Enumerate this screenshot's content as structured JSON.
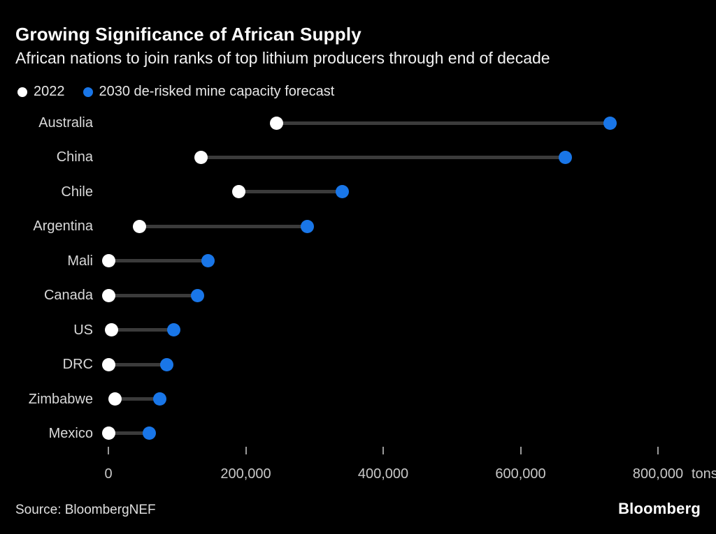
{
  "header": {
    "title": "Growing Significance of African Supply",
    "subtitle": "African nations to join ranks of top lithium producers through end of decade"
  },
  "legend": {
    "items": [
      {
        "label": "2022",
        "color": "#ffffff"
      },
      {
        "label": "2030 de-risked mine capacity forecast",
        "color": "#1976e8"
      }
    ]
  },
  "footer": {
    "source": "Source: BloombergNEF",
    "logo": "Bloomberg"
  },
  "colors": {
    "background": "#000000",
    "dot_2022": "#ffffff",
    "dot_2030": "#1976e8",
    "connector": "#3b3b3b",
    "axis_text": "#c8c8c8",
    "category_text": "#d9d9d9"
  },
  "chart_data": {
    "type": "dumbbell",
    "title": "Growing Significance of African Supply",
    "subtitle": "African nations to join ranks of top lithium producers through end of decade",
    "unit": "tons",
    "categories": [
      "Australia",
      "China",
      "Chile",
      "Argentina",
      "Mali",
      "Canada",
      "US",
      "DRC",
      "Zimbabwe",
      "Mexico"
    ],
    "series": [
      {
        "name": "2022",
        "color": "#ffffff",
        "values": [
          245000,
          135000,
          190000,
          45000,
          0,
          0,
          5000,
          0,
          10000,
          0
        ]
      },
      {
        "name": "2030 de-risked mine capacity forecast",
        "color": "#1976e8",
        "values": [
          730000,
          665000,
          340000,
          290000,
          145000,
          130000,
          95000,
          85000,
          75000,
          60000
        ]
      }
    ],
    "x_axis": {
      "min": 0,
      "max": 800000,
      "tick_values": [
        0,
        200000,
        400000,
        600000,
        800000
      ],
      "tick_labels": [
        "0",
        "200,000",
        "400,000",
        "600,000",
        "800,000"
      ],
      "unit": "tons",
      "grid": false
    },
    "legend_position": "top-left"
  }
}
